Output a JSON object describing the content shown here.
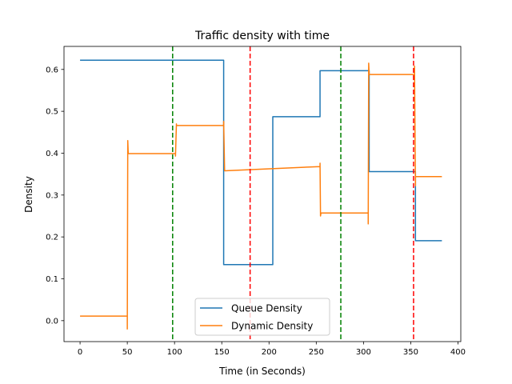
{
  "chart_data": {
    "type": "line",
    "title": "Traffic density with time",
    "xlabel": "Time (in Seconds)",
    "ylabel": "Density",
    "xlim": [
      -17,
      403
    ],
    "ylim": [
      -0.05,
      0.655
    ],
    "xticks": [
      0,
      50,
      100,
      150,
      200,
      250,
      300,
      350,
      400
    ],
    "yticks": [
      0.0,
      0.1,
      0.2,
      0.3,
      0.4,
      0.5,
      0.6
    ],
    "grid": false,
    "legend_position": "lower center",
    "series": [
      {
        "name": "Queue Density",
        "color": "#1f77b4",
        "x": [
          0,
          152,
          152,
          204,
          204,
          254,
          254,
          306,
          306,
          355,
          355,
          383
        ],
        "y": [
          0.622,
          0.622,
          0.134,
          0.134,
          0.487,
          0.487,
          0.597,
          0.597,
          0.356,
          0.356,
          0.191,
          0.191
        ]
      },
      {
        "name": "Dynamic Density",
        "color": "#ff7f0e",
        "x": [
          0,
          50,
          50,
          50.5,
          51,
          51,
          101,
          101,
          102,
          102,
          152,
          152,
          153,
          153,
          254,
          254,
          254.5,
          255,
          255,
          305,
          305,
          305.5,
          306,
          306,
          354,
          354,
          355,
          355,
          383
        ],
        "y": [
          0.011,
          0.011,
          -0.02,
          0.43,
          0.399,
          0.399,
          0.399,
          0.393,
          0.47,
          0.466,
          0.466,
          0.476,
          0.358,
          0.358,
          0.368,
          0.376,
          0.25,
          0.257,
          0.257,
          0.257,
          0.231,
          0.615,
          0.588,
          0.588,
          0.588,
          0.608,
          0.322,
          0.344,
          0.344
        ]
      }
    ],
    "vertical_lines": [
      {
        "x": 98,
        "color": "#008000",
        "style": "dashed"
      },
      {
        "x": 180,
        "color": "#ff0000",
        "style": "dashed"
      },
      {
        "x": 276,
        "color": "#008000",
        "style": "dashed"
      },
      {
        "x": 353,
        "color": "#ff0000",
        "style": "dashed"
      }
    ]
  }
}
